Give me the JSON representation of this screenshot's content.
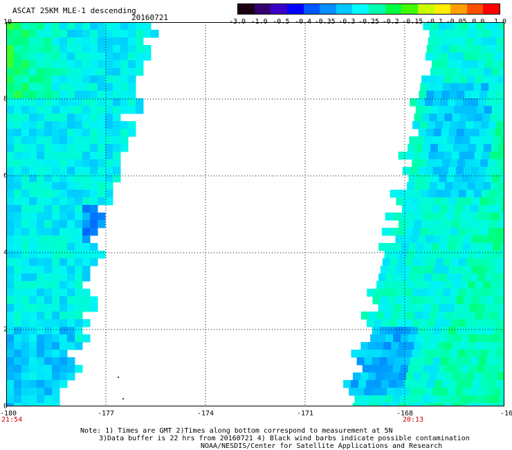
{
  "header": {
    "title": "ASCAT 25KM MLE-1 descending",
    "date": "20160721"
  },
  "colorbar": {
    "labels": [
      "-3.0",
      "-1.0",
      "-0.5",
      "-0.4",
      "-0.35",
      "-0.3",
      "-0.25",
      "-0.2",
      "-0.15",
      "-0.1",
      "-0.05",
      "0.0",
      "1.0"
    ],
    "colors": [
      "#1a0010",
      "#35006f",
      "#3a00c8",
      "#0000ff",
      "#0057ff",
      "#0090ff",
      "#00c8ff",
      "#00ffff",
      "#00ffb0",
      "#00ff40",
      "#40ff00",
      "#c8ff00",
      "#ffee00",
      "#ffa000",
      "#ff5000",
      "#ff0000"
    ]
  },
  "map": {
    "lon_range": [
      -180,
      -165
    ],
    "lat_range": [
      0,
      10
    ],
    "x_ticks": [
      -177,
      -174,
      -171,
      -168
    ],
    "x_tick_labels": [
      "-180",
      "-177",
      "-174",
      "-171",
      "-168",
      "-16"
    ],
    "y_tick_labels": [
      "0",
      "2",
      "4",
      "6",
      "8",
      "10"
    ],
    "swaths": [
      {
        "name": "left",
        "edge": [
          [
            10,
            -175.6
          ],
          [
            8,
            -176.2
          ],
          [
            6,
            -176.8
          ],
          [
            4,
            -177.4
          ],
          [
            2,
            -177.8
          ],
          [
            0,
            -178.4
          ]
        ],
        "mean_value": -0.27
      },
      {
        "name": "right",
        "edge": [
          [
            10,
            -167.2
          ],
          [
            8,
            -167.6
          ],
          [
            6,
            -168.1
          ],
          [
            4,
            -168.6
          ],
          [
            2,
            -169.2
          ],
          [
            0,
            -169.8
          ]
        ],
        "mean_value": -0.25
      }
    ]
  },
  "time_labels": {
    "left": "21:54",
    "right": "20:13"
  },
  "notes": [
    "Note: 1) Times are GMT 2)Times along bottom correspond to measurement at 5N",
    "3)Data buffer is 22 hrs from 20160721 4) Black wind barbs indicate possible contamination",
    "NOAA/NESDIS/Center for Satellite Applications and Research"
  ]
}
